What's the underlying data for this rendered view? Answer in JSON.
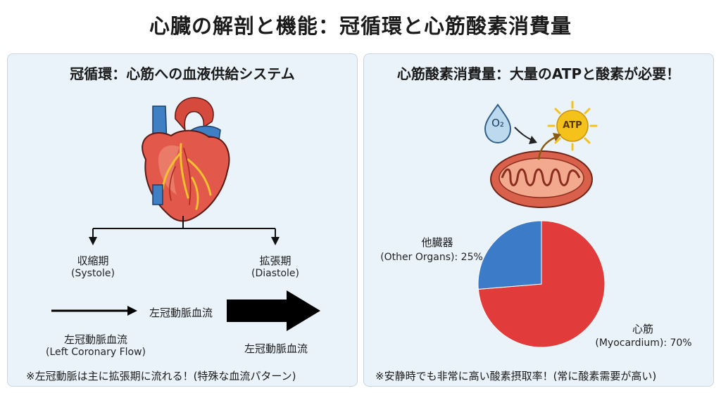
{
  "title": "心臓の解剖と機能：冠循環と心筋酸素消費量",
  "left": {
    "title": "冠循環：心筋への血液供給システム",
    "systole": {
      "jp": "収縮期",
      "en": "(Systole)"
    },
    "diastole": {
      "jp": "拡張期",
      "en": "(Diastole)"
    },
    "flow_top_label": "左冠動脈血流",
    "flow_left": {
      "jp": "左冠動脈血流",
      "en": "(Left Coronary Flow)"
    },
    "flow_right": "左冠動脈血流",
    "note": "※左冠動脈は主に拡張期に流れる！(特殊な血流パターン)",
    "colors": {
      "heart": "#e2584a",
      "vessel_blue": "#3f7fc4",
      "vessel_yellow": "#f2c12e",
      "arrow": "#000000"
    }
  },
  "right": {
    "title": "心筋酸素消費量：大量のATPと酸素が必要！",
    "o2_label": "O₂",
    "atp_label": "ATP",
    "note": "※安静時でも非常に高い酸素摂取率！(常に酸素需要が高い)",
    "colors": {
      "mitochondria": "#d9604a",
      "o2_drop": "#bcd9ee",
      "sun": "#f5c21b"
    }
  },
  "chart_data": {
    "type": "pie",
    "slices": [
      {
        "label_jp": "心筋",
        "label_en": "(Myocardium): 70%",
        "value": 70,
        "color": "#e23b3b"
      },
      {
        "label_jp": "他臓器",
        "label_en": "(Other Organs): 25%",
        "value": 25,
        "color": "#3b7bc7"
      }
    ]
  }
}
